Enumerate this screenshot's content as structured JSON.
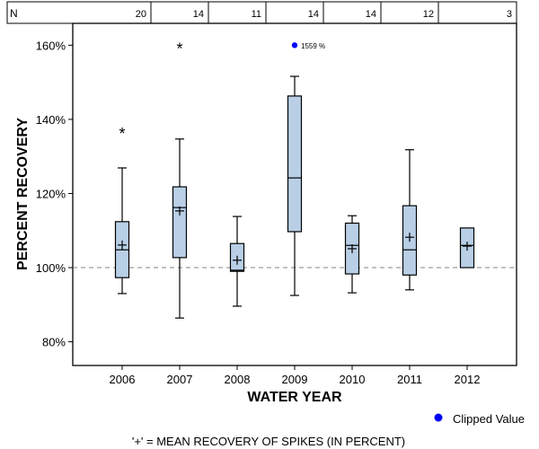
{
  "chart_data": {
    "type": "boxplot",
    "xlabel": "WATER YEAR",
    "ylabel": "PERCENT RECOVERY",
    "ylim": [
      73.6,
      165.9
    ],
    "yticks": [
      80,
      100,
      120,
      140,
      160
    ],
    "ytick_labels": [
      "80%",
      "100%",
      "120%",
      "140%",
      "160%"
    ],
    "reference_line": 100,
    "n_label": "N",
    "categories": [
      "2006",
      "2007",
      "2008",
      "2009",
      "2010",
      "2011",
      "2012"
    ],
    "n": [
      "20",
      "14",
      "11",
      "14",
      "14",
      "12",
      "3"
    ],
    "boxes": [
      {
        "whisker_low": 93.0,
        "q1": 97.3,
        "median": 104.8,
        "q3": 112.4,
        "whisker_high": 126.9,
        "mean": 106.1,
        "outliers": [
          137.1
        ]
      },
      {
        "whisker_low": 86.4,
        "q1": 102.7,
        "median": 116.2,
        "q3": 121.8,
        "whisker_high": 134.7,
        "mean": 115.3,
        "outliers": [
          160.0
        ]
      },
      {
        "whisker_low": 89.6,
        "q1": 99.0,
        "median": 99.3,
        "q3": 106.5,
        "whisker_high": 113.8,
        "mean": 102.0,
        "outliers": []
      },
      {
        "whisker_low": 92.5,
        "q1": 109.7,
        "median": 124.2,
        "q3": 146.3,
        "whisker_high": 151.6,
        "mean": null,
        "outliers": [],
        "clipped": {
          "display_at": 160,
          "label": "1559 %"
        }
      },
      {
        "whisker_low": 93.2,
        "q1": 98.3,
        "median": 106.0,
        "q3": 112.0,
        "whisker_high": 114.0,
        "mean": 105.1,
        "outliers": []
      },
      {
        "whisker_low": 94.0,
        "q1": 98.0,
        "median": 104.8,
        "q3": 116.7,
        "whisker_high": 131.8,
        "mean": 108.2,
        "outliers": []
      },
      {
        "whisker_low": null,
        "q1": 100.0,
        "median": 106.0,
        "q3": 110.7,
        "whisker_high": null,
        "mean": 105.8,
        "outliers": []
      }
    ],
    "legend": {
      "label": "Clipped Value",
      "placement": "bottom-right"
    },
    "footnote": "'+' = MEAN RECOVERY OF SPIKES (IN PERCENT)",
    "colors": {
      "box": "#b8cfe6",
      "clipped": "#0000ff",
      "refline": "#808080"
    }
  }
}
